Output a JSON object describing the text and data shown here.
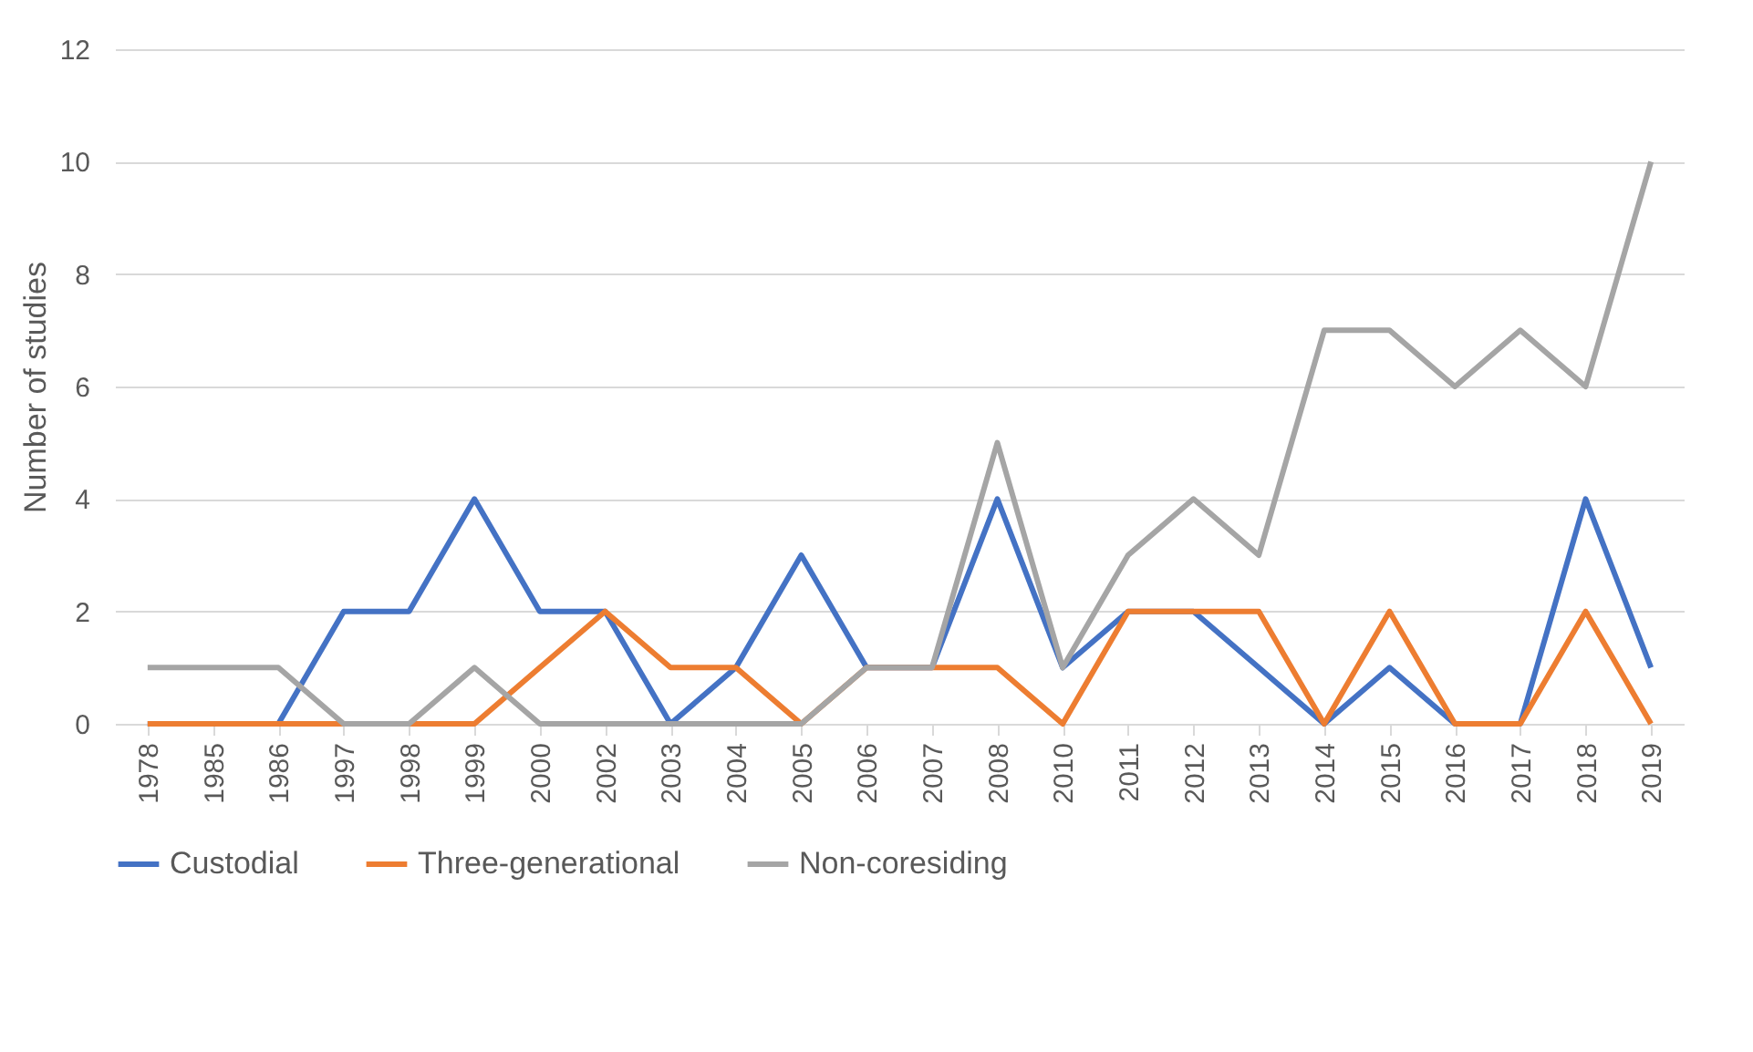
{
  "chart_data": {
    "type": "line",
    "ylabel": "Number of studies",
    "categories": [
      "1978",
      "1985",
      "1986",
      "1997",
      "1998",
      "1999",
      "2000",
      "2002",
      "2003",
      "2004",
      "2005",
      "2006",
      "2007",
      "2008",
      "2010",
      "2011",
      "2012",
      "2013",
      "2014",
      "2015",
      "2016",
      "2017",
      "2018",
      "2019"
    ],
    "series": [
      {
        "name": "Custodial",
        "color": "#4472c4",
        "values": [
          0,
          0,
          0,
          2,
          2,
          4,
          2,
          2,
          0,
          1,
          3,
          1,
          1,
          4,
          1,
          2,
          2,
          1,
          0,
          1,
          0,
          0,
          4,
          1
        ]
      },
      {
        "name": "Three-generational",
        "color": "#ed7d31",
        "values": [
          0,
          0,
          0,
          0,
          0,
          0,
          1,
          2,
          1,
          1,
          0,
          1,
          1,
          1,
          0,
          2,
          2,
          2,
          0,
          2,
          0,
          0,
          2,
          0
        ]
      },
      {
        "name": "Non-coresiding",
        "color": "#a5a5a5",
        "values": [
          1,
          1,
          1,
          0,
          0,
          1,
          0,
          0,
          0,
          0,
          0,
          1,
          1,
          5,
          1,
          3,
          4,
          3,
          7,
          7,
          6,
          7,
          6,
          10
        ]
      }
    ],
    "ylim": [
      0,
      12
    ],
    "yticks": [
      0,
      2,
      4,
      6,
      8,
      10,
      12
    ],
    "grid": "y",
    "legend": "bottom",
    "marker": "none",
    "line_style": "solid"
  }
}
